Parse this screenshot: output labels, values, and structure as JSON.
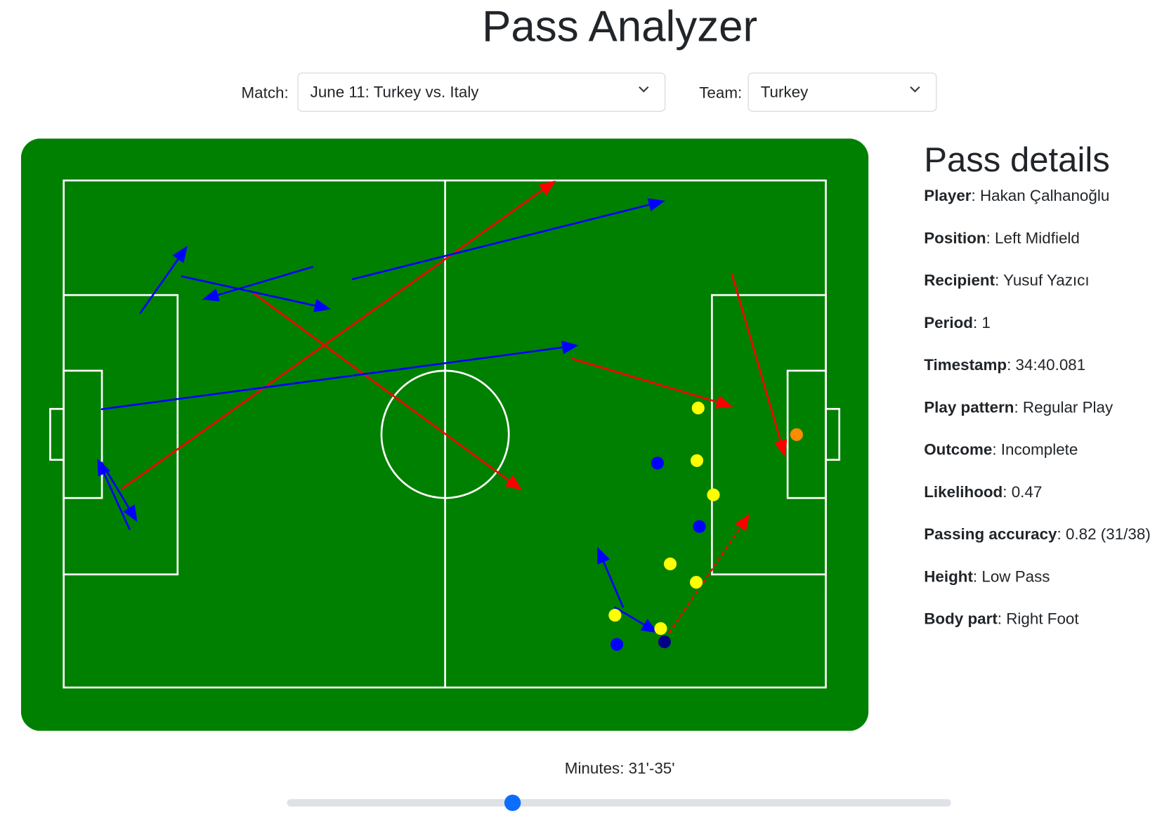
{
  "title": "Pass Analyzer",
  "filters": {
    "match_label": "Match:",
    "match_value": "June 11: Turkey vs. Italy",
    "team_label": "Team:",
    "team_value": "Turkey",
    "chevron_icon": "chevron-down-icon"
  },
  "colors": {
    "pitch": "#008000",
    "lines": "#ffffff",
    "team_pass": "#0000ff",
    "opponent_pass": "#ff0000",
    "teammate": "#0000ff",
    "opponent": "#ffff00",
    "selected_player": "#00008b",
    "ball_target": "#ff8c00",
    "slider_thumb": "#0d6efd",
    "slider_track": "#dee2e6"
  },
  "pitch": {
    "units": "StatsBomb 120x80",
    "passes": [
      {
        "team": "opponent",
        "start": [
          9.1,
          48.7
        ],
        "end": [
          77.5,
          0.0
        ]
      },
      {
        "team": "opponent",
        "start": [
          29.9,
          17.8
        ],
        "end": [
          72.2,
          48.9
        ]
      },
      {
        "team": "opponent",
        "start": [
          80.0,
          28.1
        ],
        "end": [
          105.4,
          35.7
        ]
      },
      {
        "team": "opponent",
        "start": [
          105.2,
          14.7
        ],
        "end": [
          113.6,
          43.6
        ]
      },
      {
        "team": "opponent",
        "start": [
          94.7,
          72.3
        ],
        "end": [
          108.0,
          52.6
        ],
        "dashed": true,
        "selected": true
      },
      {
        "team": "team",
        "start": [
          12.0,
          21.0
        ],
        "end": [
          19.5,
          10.3
        ]
      },
      {
        "team": "team",
        "start": [
          18.5,
          15.1
        ],
        "end": [
          42.1,
          20.3
        ]
      },
      {
        "team": "team",
        "start": [
          39.3,
          13.6
        ],
        "end": [
          21.8,
          18.8
        ]
      },
      {
        "team": "team",
        "start": [
          45.4,
          15.6
        ],
        "end": [
          94.7,
          3.2
        ]
      },
      {
        "team": "team",
        "start": [
          5.9,
          36.1
        ],
        "end": [
          81.1,
          26.0
        ]
      },
      {
        "team": "team",
        "start": [
          10.4,
          55.1
        ],
        "end": [
          5.3,
          43.9
        ]
      },
      {
        "team": "team",
        "start": [
          5.9,
          44.4
        ],
        "end": [
          11.6,
          53.9
        ]
      },
      {
        "team": "team",
        "start": [
          88.1,
          67.4
        ],
        "end": [
          84.0,
          57.8
        ]
      },
      {
        "team": "team",
        "start": [
          86.7,
          67.3
        ],
        "end": [
          93.6,
          71.4
        ]
      }
    ],
    "players": [
      {
        "role": "opponent",
        "pos": [
          99.9,
          35.9
        ]
      },
      {
        "role": "opponent",
        "pos": [
          99.7,
          44.2
        ]
      },
      {
        "role": "opponent",
        "pos": [
          102.3,
          49.6
        ]
      },
      {
        "role": "opponent",
        "pos": [
          95.5,
          60.5
        ]
      },
      {
        "role": "opponent",
        "pos": [
          99.6,
          63.4
        ]
      },
      {
        "role": "opponent",
        "pos": [
          86.8,
          68.6
        ]
      },
      {
        "role": "opponent",
        "pos": [
          94.0,
          70.7
        ]
      },
      {
        "role": "teammate",
        "pos": [
          93.5,
          44.6
        ]
      },
      {
        "role": "teammate",
        "pos": [
          100.1,
          54.6
        ]
      },
      {
        "role": "teammate",
        "pos": [
          87.1,
          73.2
        ]
      },
      {
        "role": "selected_player",
        "pos": [
          94.6,
          72.8
        ]
      },
      {
        "role": "ball_target",
        "pos": [
          115.4,
          40.1
        ]
      }
    ]
  },
  "details": {
    "heading": "Pass details",
    "rows": [
      {
        "label": "Player",
        "value": "Hakan Çalhanoğlu"
      },
      {
        "label": "Position",
        "value": "Left Midfield"
      },
      {
        "label": "Recipient",
        "value": "Yusuf Yazıcı"
      },
      {
        "label": "Period",
        "value": "1"
      },
      {
        "label": "Timestamp",
        "value": "34:40.081"
      },
      {
        "label": "Play pattern",
        "value": "Regular Play"
      },
      {
        "label": "Outcome",
        "value": "Incomplete"
      },
      {
        "label": "Likelihood",
        "value": "0.47"
      },
      {
        "label": "Passing accuracy",
        "value": "0.82 (31/38)"
      },
      {
        "label": "Height",
        "value": "Low Pass"
      },
      {
        "label": "Body part",
        "value": "Right Foot"
      }
    ]
  },
  "slider": {
    "label": "Minutes: 31'-35'",
    "fraction": 0.34
  }
}
